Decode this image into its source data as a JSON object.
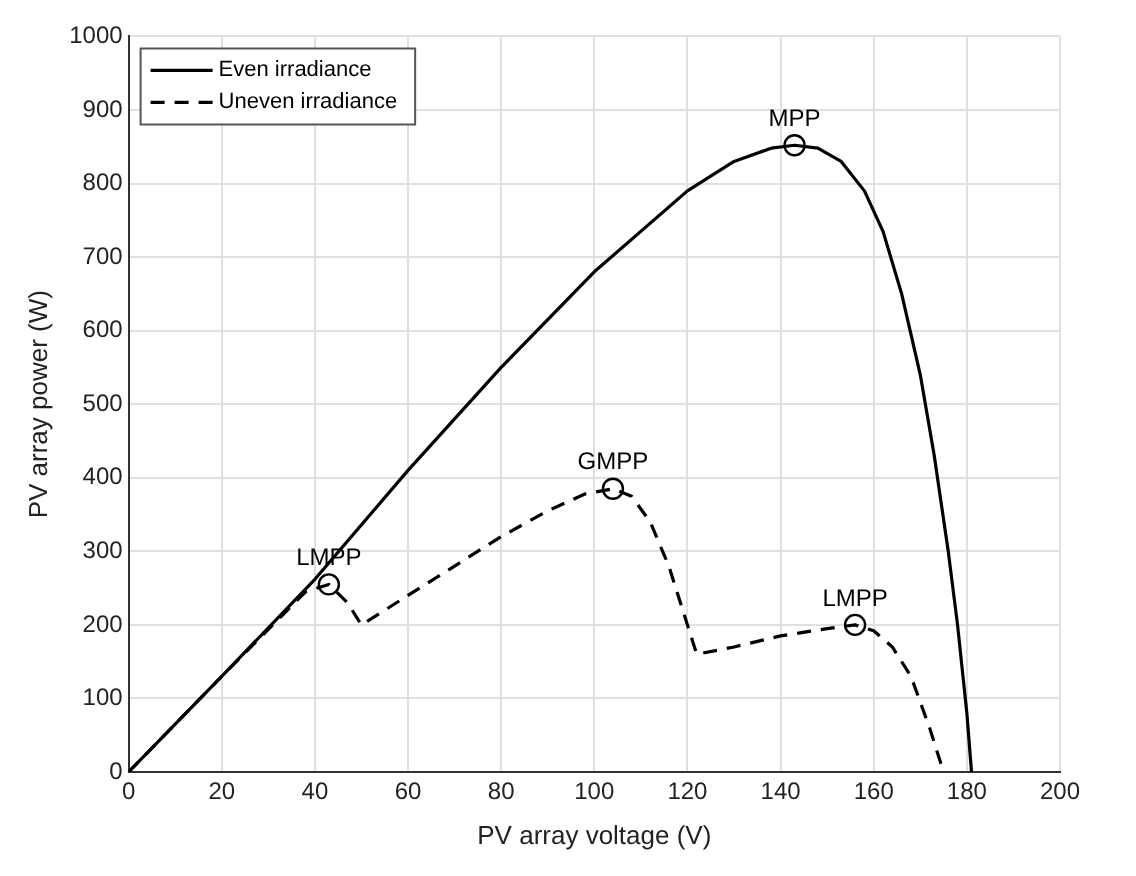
{
  "chart_data": {
    "type": "line",
    "xlabel": "PV array voltage (V)",
    "ylabel": "PV array power (W)",
    "xlim": [
      0,
      200
    ],
    "xticks": [
      0,
      20,
      40,
      60,
      80,
      100,
      120,
      140,
      160,
      180,
      200
    ],
    "ylim": [
      0,
      1000
    ],
    "yticks": [
      0,
      100,
      200,
      300,
      400,
      500,
      600,
      700,
      800,
      900,
      1000
    ],
    "grid": true,
    "legend": "top left",
    "series": [
      {
        "name": "Even irradiance",
        "color": "#000000",
        "line_style": "solid",
        "marker": "none",
        "x": [
          0,
          20,
          40,
          60,
          80,
          100,
          120,
          130,
          138,
          143,
          148,
          153,
          158,
          162,
          166,
          170,
          173,
          176,
          178,
          180,
          181
        ],
        "values": [
          0,
          130,
          262,
          410,
          550,
          680,
          790,
          830,
          848,
          852,
          848,
          830,
          790,
          735,
          650,
          540,
          430,
          300,
          200,
          80,
          0
        ]
      },
      {
        "name": "Uneven irradiance",
        "color": "#000000",
        "line_style": "dashed",
        "marker": "none",
        "x": [
          0,
          20,
          38,
          43,
          47,
          50,
          60,
          70,
          80,
          90,
          98,
          104,
          108,
          112,
          116,
          120,
          122,
          130,
          140,
          150,
          156,
          160,
          164,
          168,
          172,
          175
        ],
        "values": [
          0,
          130,
          245,
          255,
          230,
          200,
          240,
          280,
          320,
          355,
          378,
          385,
          375,
          340,
          280,
          200,
          160,
          170,
          185,
          195,
          200,
          192,
          170,
          130,
          60,
          0
        ]
      },
      {
        "type": "scatter",
        "color": "#000000",
        "marker": "circle",
        "x": [
          143,
          104,
          43,
          156
        ],
        "values": [
          852,
          385,
          255,
          200
        ]
      }
    ],
    "annotations": [
      {
        "text": "MPP",
        "x": 143,
        "y": 852
      },
      {
        "text": "GMPP",
        "x": 104,
        "y": 385
      },
      {
        "text": "LMPP",
        "x": 43,
        "y": 255
      },
      {
        "text": "LMPP",
        "x": 156,
        "y": 200
      }
    ]
  }
}
